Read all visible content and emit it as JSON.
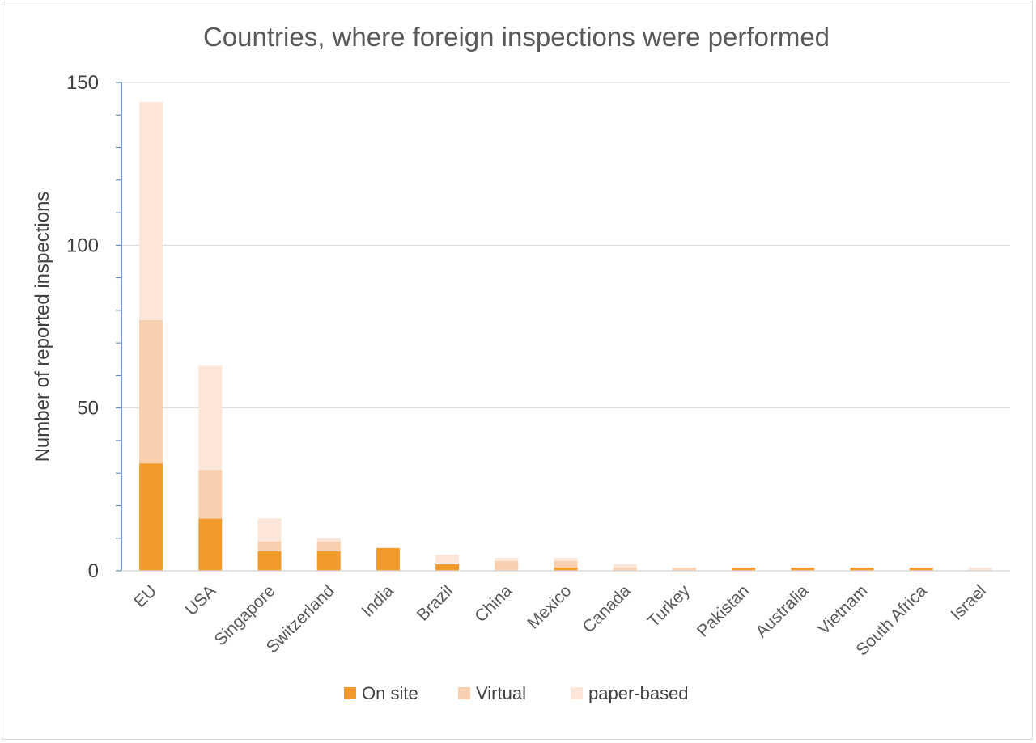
{
  "chart_data": {
    "type": "bar",
    "stacked": true,
    "title": "Countries, where foreign inspections were performed",
    "xlabel": "",
    "ylabel": "Number of reported inspections",
    "ylim": [
      0,
      150
    ],
    "yticks": [
      "0",
      "50",
      "100",
      "150"
    ],
    "grid": true,
    "legend_position": "bottom",
    "categories": [
      "EU",
      "USA",
      "Singapore",
      "Switzerland",
      "India",
      "Brazil",
      "China",
      "Mexico",
      "Canada",
      "Turkey",
      "Pakistan",
      "Australia",
      "Vietnam",
      "South Africa",
      "Israel"
    ],
    "series": [
      {
        "name": "On site",
        "color": "#f39a2d",
        "values": [
          33,
          16,
          6,
          6,
          7,
          2,
          0,
          1,
          0,
          0,
          1,
          1,
          1,
          1,
          0
        ]
      },
      {
        "name": "Virtual",
        "color": "#f9cfae",
        "values": [
          44,
          15,
          3,
          3,
          0,
          0,
          3,
          2,
          1,
          1,
          0,
          0,
          0,
          0,
          0
        ]
      },
      {
        "name": "paper-based",
        "color": "#fce6d9",
        "values": [
          67,
          32,
          7,
          1,
          0,
          3,
          1,
          1,
          1,
          0,
          0,
          0,
          0,
          0,
          1
        ]
      }
    ]
  }
}
